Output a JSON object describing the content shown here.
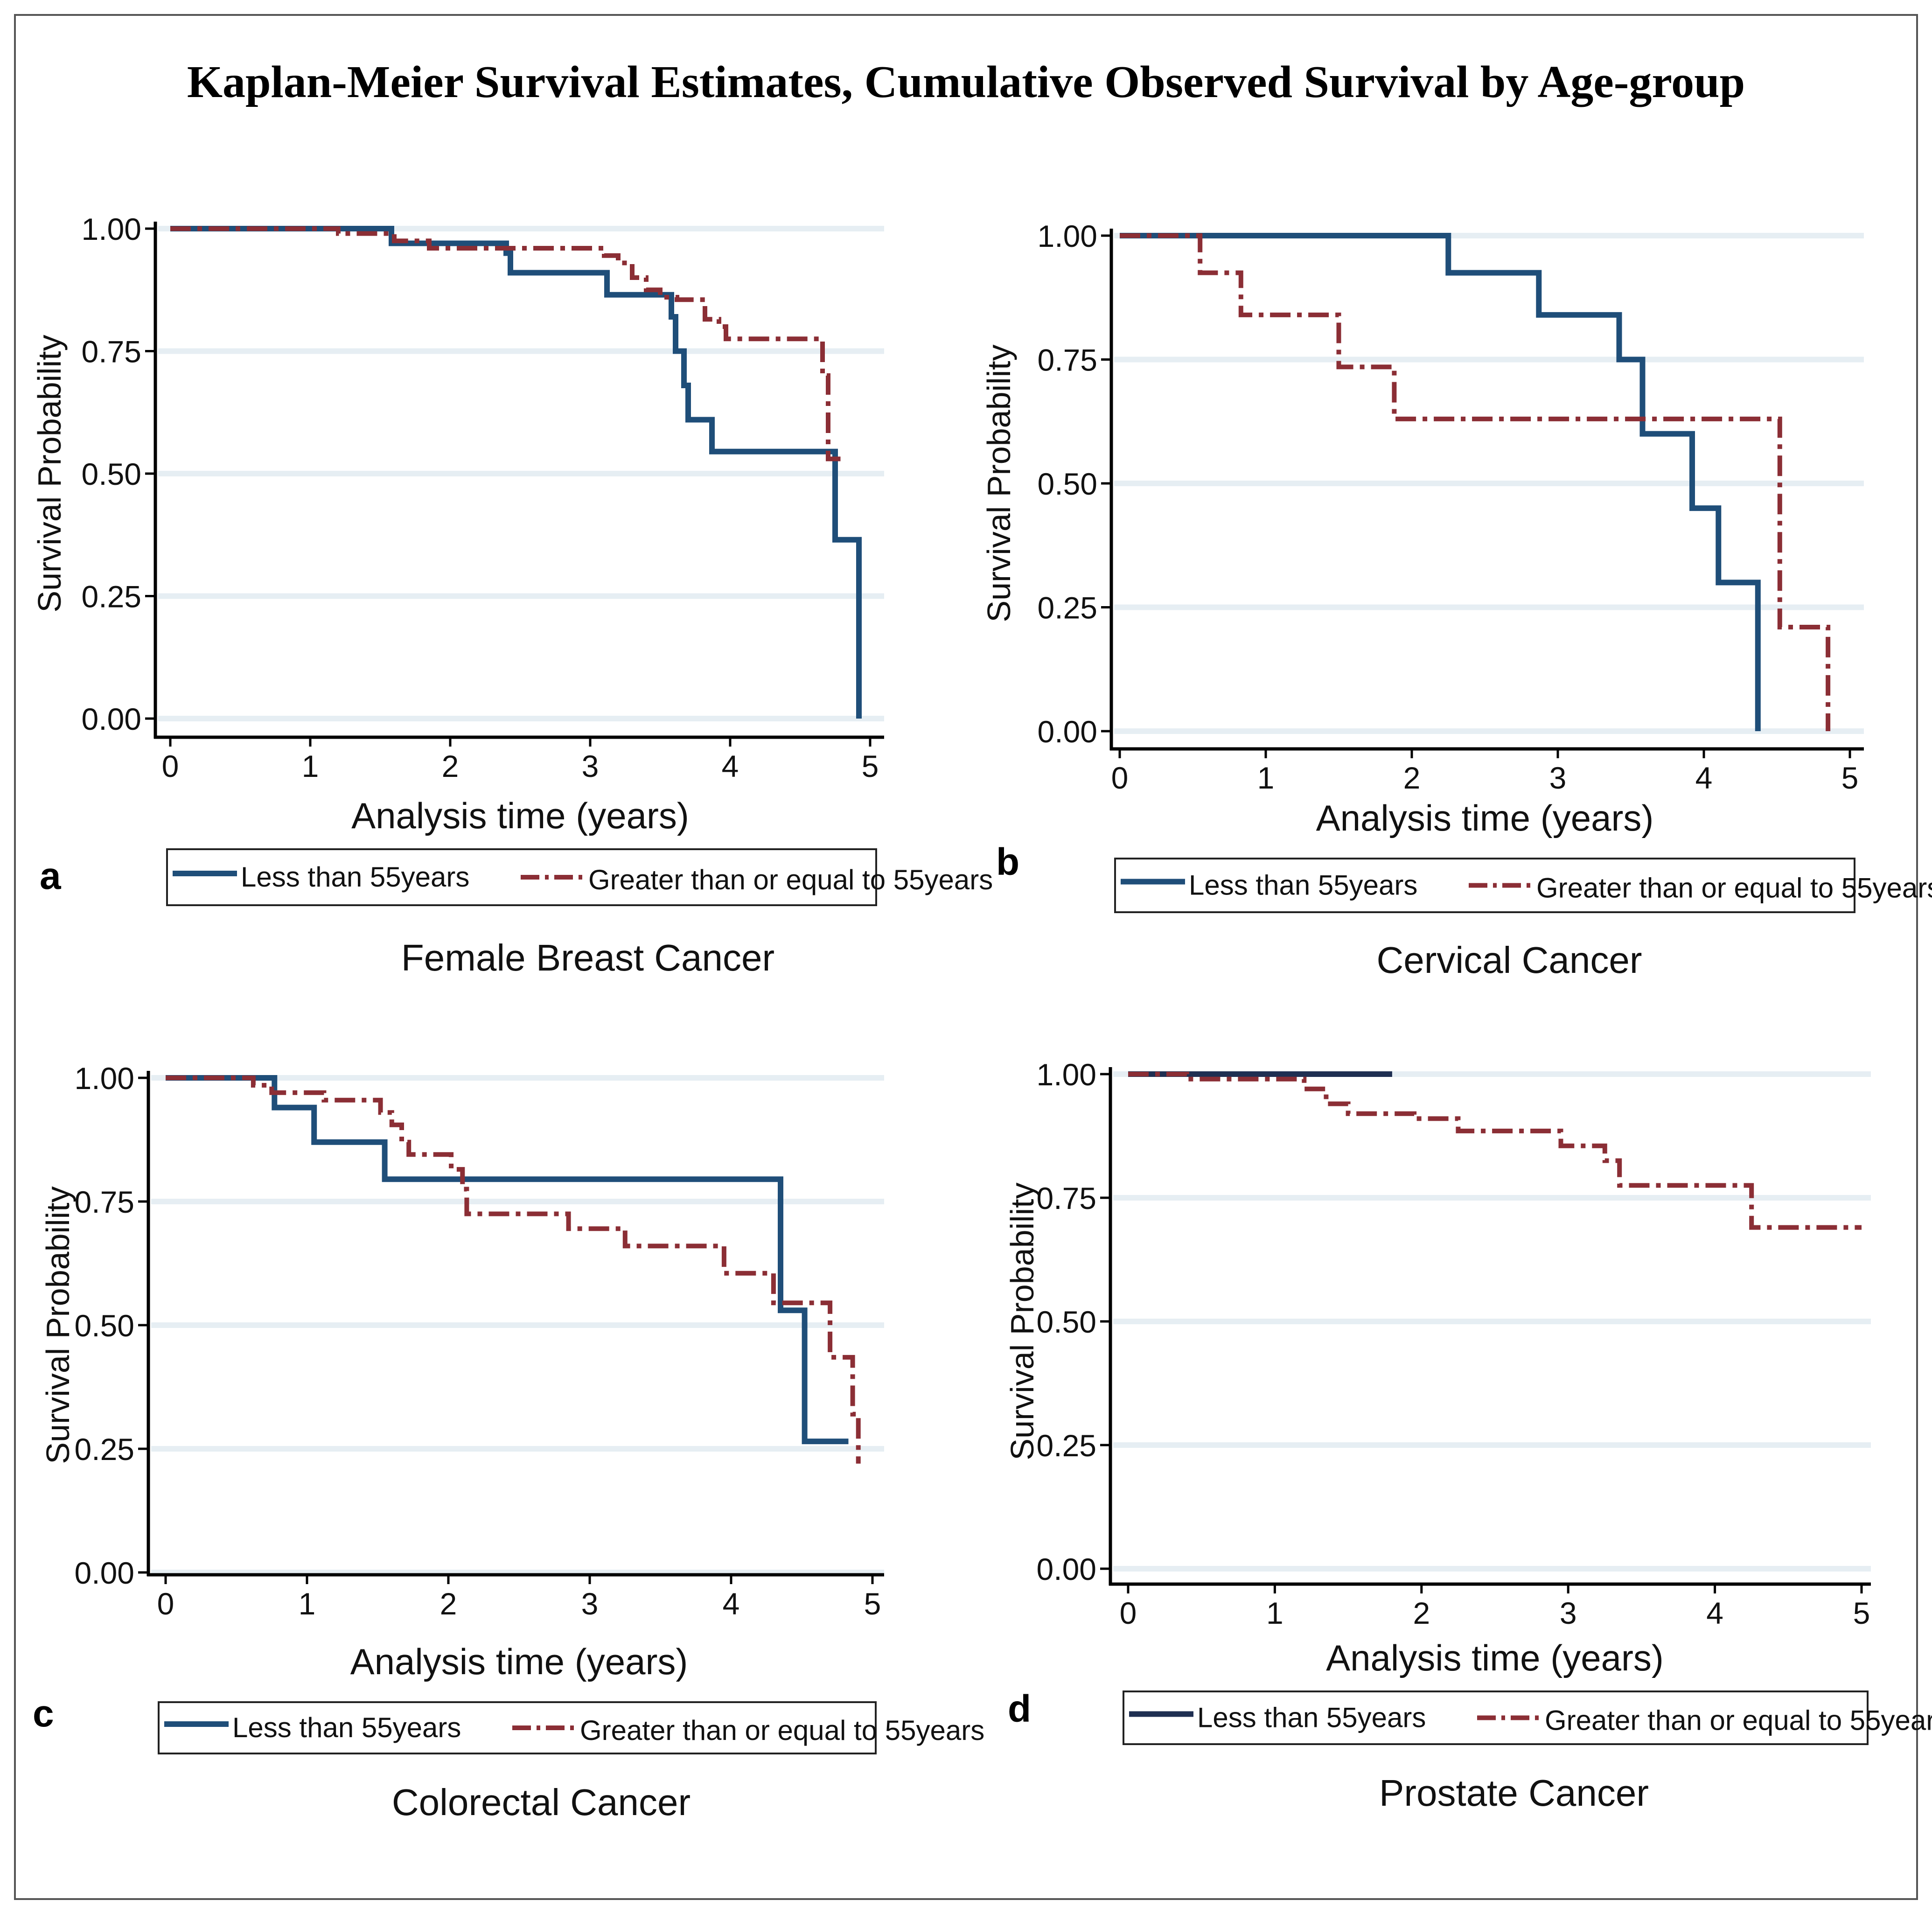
{
  "title": "Kaplan-Meier Survival Estimates,  Cumulative Observed Survival by Age-group",
  "colors": {
    "under55": "#1f4e79",
    "over55": "#8b2e35",
    "under55_d": "#1f2f52",
    "grid": "#e6eef3",
    "axis": "#000000"
  },
  "legend": {
    "under55": "Less than 55years",
    "over55": "Greater than or equal to 55years"
  },
  "chart_data": [
    {
      "id": "a",
      "letter": "a",
      "name": "Female Breast Cancer",
      "type": "line",
      "xlabel": "Analysis time (years)",
      "ylabel": "Survival Probability",
      "xlim": [
        0,
        5
      ],
      "ylim": [
        0,
        1
      ],
      "xticks": [
        "0",
        "1",
        "2",
        "3",
        "4",
        "5"
      ],
      "yticks": [
        "0.00",
        "0.25",
        "0.50",
        "0.75",
        "1.00"
      ],
      "series": [
        {
          "name": "Less than 55years",
          "style": "solid",
          "points": [
            [
              0,
              1.0
            ],
            [
              1.58,
              1.0
            ],
            [
              1.58,
              0.97
            ],
            [
              2.4,
              0.97
            ],
            [
              2.4,
              0.95
            ],
            [
              2.43,
              0.95
            ],
            [
              2.43,
              0.91
            ],
            [
              3.12,
              0.91
            ],
            [
              3.12,
              0.865
            ],
            [
              3.58,
              0.865
            ],
            [
              3.58,
              0.82
            ],
            [
              3.61,
              0.82
            ],
            [
              3.61,
              0.75
            ],
            [
              3.67,
              0.75
            ],
            [
              3.67,
              0.68
            ],
            [
              3.7,
              0.68
            ],
            [
              3.7,
              0.61
            ],
            [
              3.87,
              0.61
            ],
            [
              3.87,
              0.545
            ],
            [
              4.75,
              0.545
            ],
            [
              4.75,
              0.365
            ],
            [
              4.92,
              0.365
            ],
            [
              4.92,
              0.0
            ]
          ]
        },
        {
          "name": "Greater than or equal to 55years",
          "style": "dashdot",
          "points": [
            [
              0,
              1.0
            ],
            [
              1.2,
              1.0
            ],
            [
              1.2,
              0.99
            ],
            [
              1.6,
              0.99
            ],
            [
              1.6,
              0.975
            ],
            [
              1.85,
              0.975
            ],
            [
              1.85,
              0.96
            ],
            [
              3.1,
              0.96
            ],
            [
              3.1,
              0.945
            ],
            [
              3.2,
              0.945
            ],
            [
              3.2,
              0.93
            ],
            [
              3.3,
              0.93
            ],
            [
              3.3,
              0.9
            ],
            [
              3.4,
              0.9
            ],
            [
              3.4,
              0.875
            ],
            [
              3.5,
              0.875
            ],
            [
              3.5,
              0.86
            ],
            [
              3.62,
              0.86
            ],
            [
              3.62,
              0.855
            ],
            [
              3.82,
              0.855
            ],
            [
              3.82,
              0.815
            ],
            [
              3.92,
              0.815
            ],
            [
              3.92,
              0.8
            ],
            [
              3.97,
              0.8
            ],
            [
              3.97,
              0.775
            ],
            [
              4.66,
              0.775
            ],
            [
              4.66,
              0.7
            ],
            [
              4.7,
              0.7
            ],
            [
              4.7,
              0.53
            ],
            [
              4.83,
              0.53
            ]
          ]
        }
      ]
    },
    {
      "id": "b",
      "letter": "b",
      "name": "Cervical Cancer",
      "type": "line",
      "xlabel": "Analysis time (years)",
      "ylabel": "Survival Probability",
      "xlim": [
        0,
        5
      ],
      "ylim": [
        0,
        1
      ],
      "xticks": [
        "0",
        "1",
        "2",
        "3",
        "4",
        "5"
      ],
      "yticks": [
        "0.00",
        "0.25",
        "0.50",
        "0.75",
        "1.00"
      ],
      "series": [
        {
          "name": "Less than 55years",
          "style": "solid",
          "points": [
            [
              0,
              1.0
            ],
            [
              2.25,
              1.0
            ],
            [
              2.25,
              0.925
            ],
            [
              2.87,
              0.925
            ],
            [
              2.87,
              0.84
            ],
            [
              3.42,
              0.84
            ],
            [
              3.42,
              0.75
            ],
            [
              3.58,
              0.75
            ],
            [
              3.58,
              0.6
            ],
            [
              3.92,
              0.6
            ],
            [
              3.92,
              0.45
            ],
            [
              4.1,
              0.45
            ],
            [
              4.1,
              0.3
            ],
            [
              4.37,
              0.3
            ],
            [
              4.37,
              0.0
            ]
          ]
        },
        {
          "name": "Greater than or equal to 55years",
          "style": "dashdot",
          "points": [
            [
              0,
              1.0
            ],
            [
              0.55,
              1.0
            ],
            [
              0.55,
              0.925
            ],
            [
              0.83,
              0.925
            ],
            [
              0.83,
              0.84
            ],
            [
              1.5,
              0.84
            ],
            [
              1.5,
              0.735
            ],
            [
              1.88,
              0.735
            ],
            [
              1.88,
              0.63
            ],
            [
              4.52,
              0.63
            ],
            [
              4.52,
              0.21
            ],
            [
              4.85,
              0.21
            ],
            [
              4.85,
              0.0
            ]
          ]
        }
      ]
    },
    {
      "id": "c",
      "letter": "c",
      "name": "Colorectal Cancer",
      "type": "line",
      "xlabel": "Analysis time (years)",
      "ylabel": "Survival Probability",
      "xlim": [
        0,
        5
      ],
      "ylim": [
        0,
        1
      ],
      "xticks": [
        "0",
        "1",
        "2",
        "3",
        "4",
        "5"
      ],
      "yticks": [
        "0.00",
        "0.25",
        "0.50",
        "0.75",
        "1.00"
      ],
      "series": [
        {
          "name": "Less than 55years",
          "style": "solid",
          "points": [
            [
              0,
              1.0
            ],
            [
              0.77,
              1.0
            ],
            [
              0.77,
              0.94
            ],
            [
              1.05,
              0.94
            ],
            [
              1.05,
              0.87
            ],
            [
              1.55,
              0.87
            ],
            [
              1.55,
              0.795
            ],
            [
              4.35,
              0.795
            ],
            [
              4.35,
              0.53
            ],
            [
              4.52,
              0.53
            ],
            [
              4.52,
              0.265
            ],
            [
              4.83,
              0.265
            ]
          ]
        },
        {
          "name": "Greater than or equal to 55years",
          "style": "dashdot",
          "points": [
            [
              0,
              1.0
            ],
            [
              0.62,
              1.0
            ],
            [
              0.62,
              0.985
            ],
            [
              0.75,
              0.985
            ],
            [
              0.75,
              0.97
            ],
            [
              1.12,
              0.97
            ],
            [
              1.12,
              0.955
            ],
            [
              1.52,
              0.955
            ],
            [
              1.52,
              0.93
            ],
            [
              1.6,
              0.93
            ],
            [
              1.6,
              0.905
            ],
            [
              1.67,
              0.905
            ],
            [
              1.67,
              0.87
            ],
            [
              1.72,
              0.87
            ],
            [
              1.72,
              0.845
            ],
            [
              2.02,
              0.845
            ],
            [
              2.02,
              0.815
            ],
            [
              2.1,
              0.815
            ],
            [
              2.1,
              0.775
            ],
            [
              2.13,
              0.775
            ],
            [
              2.13,
              0.725
            ],
            [
              2.85,
              0.725
            ],
            [
              2.85,
              0.695
            ],
            [
              3.25,
              0.695
            ],
            [
              3.25,
              0.66
            ],
            [
              3.95,
              0.66
            ],
            [
              3.95,
              0.605
            ],
            [
              4.3,
              0.605
            ],
            [
              4.3,
              0.545
            ],
            [
              4.7,
              0.545
            ],
            [
              4.7,
              0.435
            ],
            [
              4.86,
              0.435
            ],
            [
              4.86,
              0.32
            ],
            [
              4.9,
              0.32
            ],
            [
              4.9,
              0.22
            ]
          ]
        }
      ]
    },
    {
      "id": "d",
      "letter": "d",
      "name": "Prostate Cancer",
      "type": "line",
      "xlabel": "Analysis time (years)",
      "ylabel": "Survival Probability",
      "xlim": [
        0,
        5
      ],
      "ylim": [
        0,
        1
      ],
      "xticks": [
        "0",
        "1",
        "2",
        "3",
        "4",
        "5"
      ],
      "yticks": [
        "0.00",
        "0.25",
        "0.50",
        "0.75",
        "1.00"
      ],
      "series": [
        {
          "name": "Less than 55years",
          "style": "solid",
          "points": [
            [
              0,
              1.0
            ],
            [
              1.8,
              1.0
            ]
          ]
        },
        {
          "name": "Greater than or equal to 55years",
          "style": "dashdot",
          "points": [
            [
              0,
              1.0
            ],
            [
              0.4,
              1.0
            ],
            [
              0.4,
              0.99
            ],
            [
              1.2,
              0.99
            ],
            [
              1.2,
              0.97
            ],
            [
              1.35,
              0.97
            ],
            [
              1.35,
              0.94
            ],
            [
              1.5,
              0.94
            ],
            [
              1.5,
              0.92
            ],
            [
              1.95,
              0.92
            ],
            [
              1.95,
              0.91
            ],
            [
              2.25,
              0.91
            ],
            [
              2.25,
              0.885
            ],
            [
              2.95,
              0.885
            ],
            [
              2.95,
              0.855
            ],
            [
              3.25,
              0.855
            ],
            [
              3.25,
              0.825
            ],
            [
              3.35,
              0.825
            ],
            [
              3.35,
              0.775
            ],
            [
              4.25,
              0.775
            ],
            [
              4.25,
              0.69
            ],
            [
              5.0,
              0.69
            ]
          ]
        }
      ]
    }
  ]
}
